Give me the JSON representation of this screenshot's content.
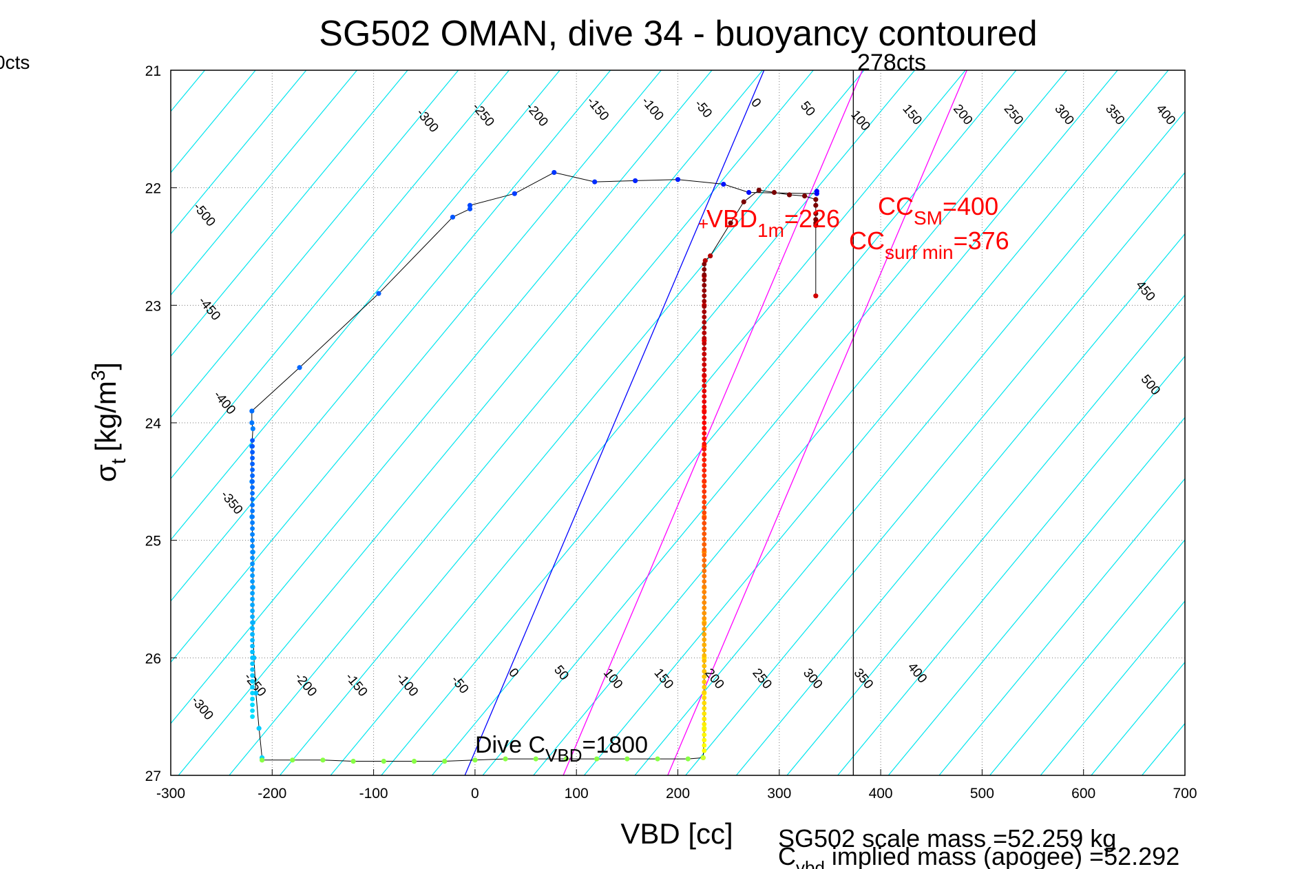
{
  "chart_data": {
    "type": "scatter",
    "title": "SG502 OMAN, dive 34 - buoyancy contoured",
    "xlabel": "VBD [cc]",
    "ylabel_main": "σ",
    "ylabel_sub": "t",
    "ylabel_units_open": "[kg/m",
    "ylabel_units_sup": "3",
    "ylabel_units_close": "]",
    "xlim": [
      -300,
      700
    ],
    "ylim": [
      21,
      27
    ],
    "y_reversed": true,
    "grid": true,
    "xticks": [
      "-300",
      "-200",
      "-100",
      "0",
      "100",
      "200",
      "300",
      "400",
      "500",
      "600",
      "700"
    ],
    "yticks": [
      "21",
      "22",
      "23",
      "24",
      "25",
      "26",
      "27"
    ],
    "contour_slope_cc_per_sigma": 96,
    "contour_levels": [
      -500,
      -450,
      -400,
      -350,
      -300,
      -250,
      -200,
      -150,
      -100,
      -50,
      0,
      50,
      100,
      150,
      200,
      250,
      300,
      350,
      400,
      450,
      500
    ],
    "contour_labels_top": [
      {
        "text": "-500",
        "vbd": -270,
        "sigma": 22.25
      },
      {
        "text": "-450",
        "vbd": -265,
        "sigma": 23.05
      },
      {
        "text": "-400",
        "vbd": -250,
        "sigma": 23.85
      },
      {
        "text": "-350",
        "vbd": -243,
        "sigma": 24.7
      },
      {
        "text": "-300",
        "vbd": -50,
        "sigma": 21.45
      },
      {
        "text": "-250",
        "vbd": 5,
        "sigma": 21.4
      },
      {
        "text": "-200",
        "vbd": 58,
        "sigma": 21.4
      },
      {
        "text": "-150",
        "vbd": 118,
        "sigma": 21.35
      },
      {
        "text": "-100",
        "vbd": 172,
        "sigma": 21.35
      },
      {
        "text": "-50",
        "vbd": 222,
        "sigma": 21.35
      },
      {
        "text": "0",
        "vbd": 274,
        "sigma": 21.3
      },
      {
        "text": "50",
        "vbd": 325,
        "sigma": 21.35
      },
      {
        "text": "100",
        "vbd": 377,
        "sigma": 21.45
      },
      {
        "text": "150",
        "vbd": 428,
        "sigma": 21.4
      },
      {
        "text": "200",
        "vbd": 478,
        "sigma": 21.4
      },
      {
        "text": "250",
        "vbd": 528,
        "sigma": 21.4
      },
      {
        "text": "300",
        "vbd": 578,
        "sigma": 21.4
      },
      {
        "text": "350",
        "vbd": 628,
        "sigma": 21.4
      },
      {
        "text": "400",
        "vbd": 678,
        "sigma": 21.4
      },
      {
        "text": "450",
        "vbd": 658,
        "sigma": 22.9
      },
      {
        "text": "500",
        "vbd": 663,
        "sigma": 23.7
      }
    ],
    "contour_labels_bottom": [
      {
        "text": "-300",
        "vbd": -272,
        "sigma": 26.45
      },
      {
        "text": "-250",
        "vbd": -220,
        "sigma": 26.25
      },
      {
        "text": "-200",
        "vbd": -170,
        "sigma": 26.25
      },
      {
        "text": "-150",
        "vbd": -120,
        "sigma": 26.25
      },
      {
        "text": "-100",
        "vbd": -70,
        "sigma": 26.25
      },
      {
        "text": "-50",
        "vbd": -18,
        "sigma": 26.25
      },
      {
        "text": "0",
        "vbd": 35,
        "sigma": 26.15
      },
      {
        "text": "50",
        "vbd": 82,
        "sigma": 26.15
      },
      {
        "text": "100",
        "vbd": 133,
        "sigma": 26.2
      },
      {
        "text": "150",
        "vbd": 183,
        "sigma": 26.2
      },
      {
        "text": "200",
        "vbd": 233,
        "sigma": 26.2
      },
      {
        "text": "250",
        "vbd": 280,
        "sigma": 26.2
      },
      {
        "text": "300",
        "vbd": 330,
        "sigma": 26.2
      },
      {
        "text": "350",
        "vbd": 380,
        "sigma": 26.2
      },
      {
        "text": "400",
        "vbd": 433,
        "sigma": 26.15
      }
    ],
    "reference_lines": [
      {
        "name": "vbd-1m-line",
        "color": "#0000ff",
        "vbd_at_27": -10,
        "vbd_at_21": 285
      },
      {
        "name": "cc-surf-min-line",
        "color": "#ff00ff",
        "vbd_at_27": 87,
        "vbd_at_21": 382
      },
      {
        "name": "cc-sm-line",
        "color": "#ff00ff",
        "vbd_at_27": 190,
        "vbd_at_21": 485
      }
    ],
    "vertical_line": {
      "vbd": 373,
      "label": "278cts",
      "color": "#000000"
    },
    "series": [
      {
        "name": "dive",
        "color_start": "#0000cc",
        "points": [
          [
            337,
            22.03
          ],
          [
            337,
            22.05
          ],
          [
            270,
            22.04
          ],
          [
            245,
            21.97
          ],
          [
            200,
            21.93
          ],
          [
            158,
            21.94
          ],
          [
            118,
            21.95
          ],
          [
            78,
            21.87
          ],
          [
            39,
            22.05
          ],
          [
            -5,
            22.15
          ],
          [
            -5,
            22.18
          ],
          [
            -22,
            22.25
          ],
          [
            -95,
            22.9
          ],
          [
            -173,
            23.53
          ],
          [
            -220,
            23.9
          ],
          [
            -220,
            24.0
          ],
          [
            -219,
            24.05
          ],
          [
            -220,
            24.2
          ],
          [
            -220,
            24.5
          ],
          [
            -220,
            24.8
          ],
          [
            -219,
            25.1
          ],
          [
            -219,
            25.4
          ],
          [
            -219,
            25.7
          ],
          [
            -218,
            26.0
          ],
          [
            -216,
            26.3
          ],
          [
            -213,
            26.6
          ],
          [
            -210,
            26.85
          ]
        ]
      },
      {
        "name": "bottom",
        "color": "#88ff44",
        "points": [
          [
            -210,
            26.87
          ],
          [
            -180,
            26.87
          ],
          [
            -150,
            26.87
          ],
          [
            -120,
            26.88
          ],
          [
            -90,
            26.88
          ],
          [
            -60,
            26.88
          ],
          [
            -30,
            26.88
          ],
          [
            0,
            26.87
          ],
          [
            30,
            26.86
          ],
          [
            60,
            26.86
          ],
          [
            90,
            26.86
          ],
          [
            120,
            26.86
          ],
          [
            150,
            26.86
          ],
          [
            180,
            26.86
          ],
          [
            210,
            26.86
          ],
          [
            225,
            26.85
          ]
        ]
      },
      {
        "name": "climb",
        "color_end": "#7a0000",
        "points": [
          [
            225,
            26.85
          ],
          [
            226,
            26.6
          ],
          [
            226,
            26.3
          ],
          [
            226,
            26.0
          ],
          [
            226,
            25.7
          ],
          [
            226,
            25.4
          ],
          [
            226,
            25.1
          ],
          [
            226,
            24.8
          ],
          [
            226,
            24.5
          ],
          [
            226,
            24.2
          ],
          [
            226,
            23.9
          ],
          [
            226,
            23.6
          ],
          [
            226,
            23.3
          ],
          [
            226,
            23.0
          ],
          [
            226,
            22.75
          ],
          [
            227,
            22.62
          ],
          [
            232,
            22.58
          ],
          [
            252,
            22.3
          ],
          [
            265,
            22.12
          ],
          [
            280,
            22.02
          ],
          [
            295,
            22.04
          ],
          [
            310,
            22.06
          ],
          [
            325,
            22.07
          ],
          [
            336,
            22.1
          ],
          [
            336,
            22.15
          ],
          [
            336,
            22.22
          ],
          [
            336,
            22.27
          ],
          [
            336,
            22.3
          ],
          [
            336,
            22.32
          ],
          [
            336,
            22.92
          ]
        ]
      }
    ],
    "annotations": {
      "vbd_1m": {
        "main": "VBD",
        "sub": "1m",
        "value": "=226"
      },
      "cc_sm": {
        "main": "CC",
        "sub": "SM",
        "value": "=400"
      },
      "cc_surf_min": {
        "main": "CC",
        "sub": "surf min",
        "value": "=376"
      },
      "dive_cvbd": {
        "main": "Dive C",
        "sub": "VBD",
        "value": "=1800"
      },
      "cts_label": "278cts"
    }
  },
  "footer": {
    "scale_mass": "SG502 scale mass =52.259 kg",
    "implied_main": "C",
    "implied_sub": "vbd",
    "implied_rest": " implied mass (apogee) =52.292"
  },
  "corner_label": "0cts"
}
